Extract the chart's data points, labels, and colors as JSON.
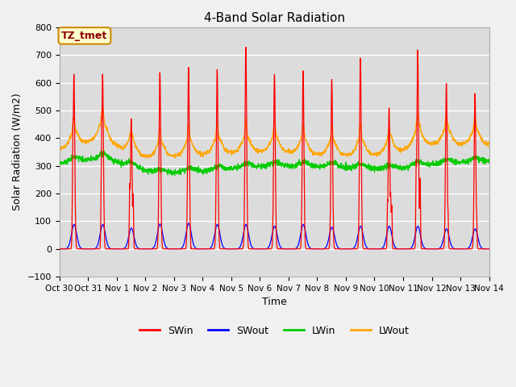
{
  "title": "4-Band Solar Radiation",
  "xlabel": "Time",
  "ylabel": "Solar Radiation (W/m2)",
  "ylim": [
    -100,
    800
  ],
  "yticks": [
    -100,
    0,
    100,
    200,
    300,
    400,
    500,
    600,
    700,
    800
  ],
  "xtick_labels": [
    "Oct 30",
    "Oct 31",
    "Nov 1",
    "Nov 2",
    "Nov 3",
    "Nov 4",
    "Nov 5",
    "Nov 6",
    "Nov 7",
    "Nov 8",
    "Nov 9",
    "Nov 10",
    "Nov 11",
    "Nov 12",
    "Nov 13",
    "Nov 14"
  ],
  "colors": {
    "SWin": "#ff0000",
    "SWout": "#0000ff",
    "LWin": "#00cc00",
    "LWout": "#ffa500"
  },
  "fig_bg_color": "#f0f0f0",
  "plot_bg_color": "#dcdcdc",
  "annotation_text": "TZ_tmet",
  "annotation_bg": "#ffffcc",
  "annotation_border": "#cc8800",
  "n_days": 15,
  "dt_minutes": 10
}
